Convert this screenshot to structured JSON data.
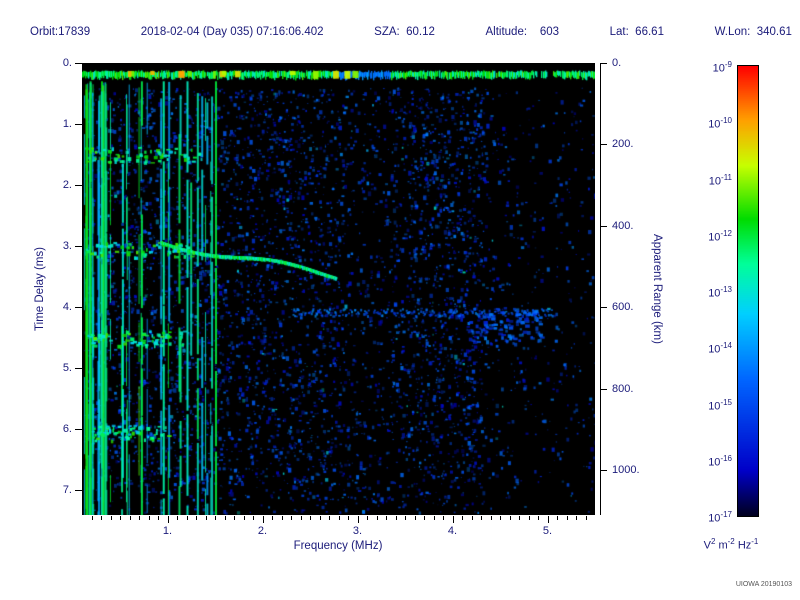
{
  "header": {
    "orbit": "Orbit:17839",
    "datetime": "2018-02-04 (Day 035) 07:16:06.402",
    "sza": "SZA:  60.12",
    "altitude": "Altitude:    603",
    "lat": "Lat:  66.61",
    "wlon": "W.Lon:  340.61"
  },
  "axes": {
    "left": {
      "label": "Time Delay (ms)",
      "ticks": [
        "0.",
        "1.",
        "2.",
        "3.",
        "4.",
        "5.",
        "6.",
        "7."
      ],
      "values": [
        0,
        1,
        2,
        3,
        4,
        5,
        6,
        7
      ]
    },
    "right": {
      "label": "Apparent Range (km)",
      "ticks": [
        "0.",
        "200.",
        "400.",
        "600.",
        "800.",
        "1000."
      ],
      "values": [
        0,
        200,
        400,
        600,
        800,
        1000
      ]
    },
    "bottom": {
      "label": "Frequency (MHz)",
      "ticks": [
        "1.",
        "2.",
        "3.",
        "4.",
        "5."
      ],
      "values": [
        1,
        2,
        3,
        4,
        5
      ]
    }
  },
  "colorbar": {
    "base": "10",
    "tick_exponents": [
      "-9",
      "-10",
      "-11",
      "-12",
      "-13",
      "-14",
      "-15",
      "-16",
      "-17"
    ],
    "units": {
      "v": "V",
      "v_exp": "2",
      "m": "m",
      "m_exp": "-2",
      "hz": "Hz",
      "hz_exp": "-1"
    }
  },
  "credit": "UIOWA 20190103",
  "theme": {
    "text_color": "#1b1b7a",
    "tick_color": "#000000",
    "plot_bg": "#000000"
  },
  "chart_data": {
    "type": "heatmap",
    "title": "Radar sounder ionogram spectrogram",
    "xlabel": "Frequency (MHz)",
    "ylabel_left": "Time Delay (ms)",
    "ylabel_right": "Apparent Range (km)",
    "x_range_mhz": [
      0.1,
      5.5
    ],
    "y_range_ms": [
      0,
      7.41
    ],
    "x_ticks": [
      1,
      2,
      3,
      4,
      5
    ],
    "y_ticks_ms": [
      0,
      1,
      2,
      3,
      4,
      5,
      6,
      7
    ],
    "right_ticks_km": [
      0,
      200,
      400,
      600,
      800,
      1000
    ],
    "km_per_ms": 149.9,
    "color_scale": {
      "type": "log",
      "units": "V^2 m^-2 Hz^-1",
      "max": "1e-9",
      "min": "1e-17"
    },
    "colormap_stops": [
      [
        0,
        "#000020"
      ],
      [
        0.1,
        "#0000c8"
      ],
      [
        0.3,
        "#0064ff"
      ],
      [
        0.45,
        "#00d0ff"
      ],
      [
        0.56,
        "#00ff9a"
      ],
      [
        0.66,
        "#00dc00"
      ],
      [
        0.78,
        "#c8ff00"
      ],
      [
        0.88,
        "#ffa000"
      ],
      [
        1,
        "#ff0000"
      ]
    ],
    "seed": 1337,
    "features": {
      "surface_band": {
        "delay_ms": 0.18,
        "v": 0.55,
        "dim_zone_mhz": [
          2.8,
          3.35
        ]
      },
      "noise": {
        "count": 9000
      },
      "plasma_lines": {
        "count": 34,
        "f_min": 0.12,
        "f_max": 1.62,
        "strong": [
          0.18,
          0.3,
          0.52,
          0.72,
          0.95,
          1.2,
          1.5
        ]
      },
      "clusters": [
        {
          "f0": 0.12,
          "f1": 1.35,
          "d": 1.5
        },
        {
          "f0": 0.12,
          "f1": 1.25,
          "d": 3.05
        },
        {
          "f0": 0.15,
          "f1": 1.2,
          "d": 4.5
        },
        {
          "f0": 0.2,
          "f1": 1.0,
          "d": 6.05
        }
      ],
      "ionosphere_trace": {
        "f0": 0.92,
        "f1": 2.77,
        "d0": 2.92,
        "d1": 3.47
      },
      "horizontal_streak": {
        "d": 4.08,
        "f0": 2.3,
        "f1": 5.05
      },
      "blob_cluster": {
        "f0": 4.15,
        "f1": 4.95,
        "d0": 4.0,
        "d1": 4.6
      }
    }
  }
}
